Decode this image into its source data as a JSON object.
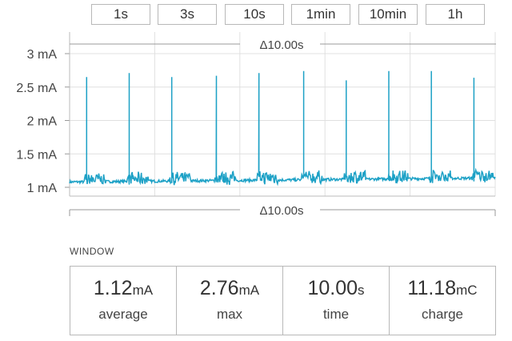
{
  "time_ranges": [
    {
      "label": "1s"
    },
    {
      "label": "3s"
    },
    {
      "label": "10s"
    },
    {
      "label": "1min"
    },
    {
      "label": "10min"
    },
    {
      "label": "1h"
    }
  ],
  "window_section": {
    "label": "WINDOW",
    "stats": [
      {
        "value": "1.12",
        "unit": "mA",
        "label": "average"
      },
      {
        "value": "2.76",
        "unit": "mA",
        "label": "max"
      },
      {
        "value": "10.00",
        "unit": "s",
        "label": "time"
      },
      {
        "value": "11.18",
        "unit": "mC",
        "label": "charge"
      }
    ]
  },
  "chart_data": {
    "type": "line",
    "top_delta_label": "Δ10.00s",
    "bottom_delta_label": "Δ10.00s",
    "y_ticks": [
      {
        "value": 3,
        "label": "3 mA"
      },
      {
        "value": 2.5,
        "label": "2.5 mA"
      },
      {
        "value": 2,
        "label": "2 mA"
      },
      {
        "value": 1.5,
        "label": "1.5 mA"
      },
      {
        "value": 1,
        "label": "1 mA"
      }
    ],
    "ylim": [
      1,
      3
    ],
    "xlim": [
      0,
      10
    ],
    "grid": true,
    "color": "#1da1c6",
    "baseline_start": 1.08,
    "baseline_end": 1.14,
    "spike_times": [
      0.4,
      1.4,
      2.4,
      3.45,
      4.45,
      5.5,
      6.5,
      7.5,
      8.5,
      9.5
    ],
    "spike_peaks": [
      2.65,
      2.71,
      2.65,
      2.67,
      2.71,
      2.74,
      2.6,
      2.74,
      2.74,
      2.64
    ]
  }
}
